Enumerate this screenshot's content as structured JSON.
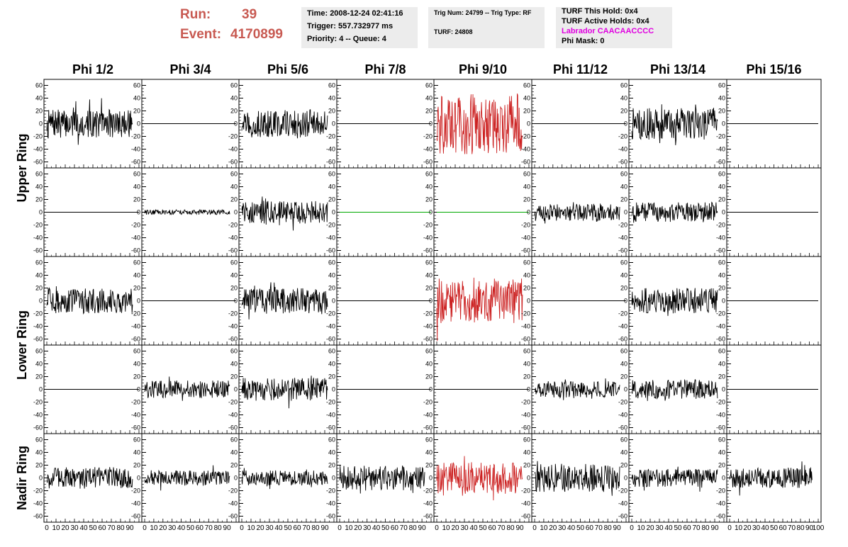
{
  "header": {
    "run_label": "Run:",
    "run_value": "39",
    "event_label": "Event:",
    "event_value": "4170899",
    "time": "Time: 2008-12-24 02:41:16",
    "trigger": "Trigger: 557.732977 ms",
    "priority": "Priority: 4 -- Queue: 4",
    "trig_num": "Trig Num: 24799 -- Trig Type: RF",
    "turf": "TURF: 24808",
    "turf_this_hold": "TURF This Hold: 0x4",
    "turf_active_holds": "TURF Active Holds: 0x4",
    "labrador": "Labrador CAACAACCCC",
    "phi_mask": "Phi Mask: 0"
  },
  "colors": {
    "header_red": "#c85a52",
    "labrador_magenta": "#e000e0",
    "trace_black": "#000000",
    "trace_red": "#cc2222",
    "trace_green": "#00aa00",
    "info_box_bg": "#ececec"
  },
  "chart_data": {
    "type": "line",
    "columns": [
      "Phi 1/2",
      "Phi 3/4",
      "Phi 5/6",
      "Phi 7/8",
      "Phi 9/10",
      "Phi 11/12",
      "Phi 13/14",
      "Phi 15/16"
    ],
    "ring_labels": [
      "Upper Ring",
      "Lower Ring",
      "Nadir Ring"
    ],
    "ylim": [
      -65,
      65
    ],
    "y_ticks": [
      -60,
      -40,
      -20,
      0,
      20,
      40,
      60
    ],
    "xlim": [
      0,
      100
    ],
    "x_ticks": [
      0,
      10,
      20,
      30,
      40,
      50,
      60,
      70,
      80,
      90,
      100
    ],
    "rows": [
      [
        {
          "amp": 22,
          "color": "black"
        },
        {
          "amp": 0,
          "color": "black"
        },
        {
          "amp": 22,
          "color": "black"
        },
        {
          "amp": 0,
          "color": "black"
        },
        {
          "amp": 48,
          "color": "red"
        },
        {
          "amp": 0,
          "color": "black"
        },
        {
          "amp": 25,
          "color": "black"
        },
        {
          "amp": 0,
          "color": "black"
        }
      ],
      [
        {
          "amp": 0,
          "color": "black"
        },
        {
          "amp": 4,
          "color": "black"
        },
        {
          "amp": 18,
          "color": "black"
        },
        {
          "amp": 0,
          "color": "green"
        },
        {
          "amp": 0,
          "color": "green"
        },
        {
          "amp": 14,
          "color": "black"
        },
        {
          "amp": 16,
          "color": "black"
        },
        {
          "amp": 0,
          "color": "black"
        }
      ],
      [
        {
          "amp": 20,
          "color": "black"
        },
        {
          "amp": 0,
          "color": "black"
        },
        {
          "amp": 20,
          "color": "black"
        },
        {
          "amp": 0,
          "color": "black"
        },
        {
          "amp": 35,
          "color": "red"
        },
        {
          "amp": 0,
          "color": "black"
        },
        {
          "amp": 20,
          "color": "black"
        },
        {
          "amp": 0,
          "color": "black"
        }
      ],
      [
        {
          "amp": 0,
          "color": "black"
        },
        {
          "amp": 14,
          "color": "black"
        },
        {
          "amp": 18,
          "color": "black"
        },
        {
          "amp": 0,
          "color": "black"
        },
        {
          "amp": 0,
          "color": "black"
        },
        {
          "amp": 13,
          "color": "black"
        },
        {
          "amp": 15,
          "color": "black"
        },
        {
          "amp": 0,
          "color": "black"
        }
      ],
      [
        {
          "amp": 17,
          "color": "black"
        },
        {
          "amp": 12,
          "color": "black"
        },
        {
          "amp": 12,
          "color": "black"
        },
        {
          "amp": 20,
          "color": "black"
        },
        {
          "amp": 25,
          "color": "red"
        },
        {
          "amp": 22,
          "color": "black"
        },
        {
          "amp": 14,
          "color": "black"
        },
        {
          "amp": 16,
          "color": "black"
        }
      ]
    ]
  }
}
